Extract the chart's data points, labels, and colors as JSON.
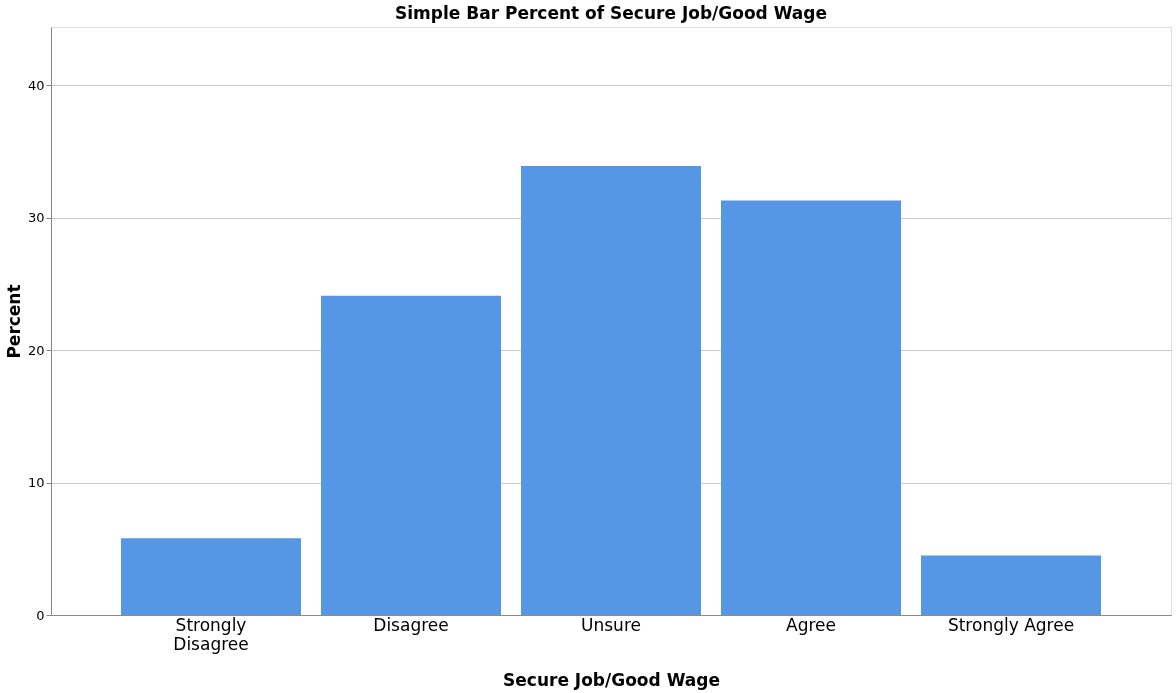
{
  "chart_data": {
    "type": "bar",
    "title": "Simple Bar Percent of Secure Job/Good Wage",
    "xlabel": "Secure Job/Good Wage",
    "ylabel": "Percent",
    "categories": [
      "Strongly Disagree",
      "Disagree",
      "Unsure",
      "Agree",
      "Strongly Agree"
    ],
    "values": [
      5.8,
      24.1,
      33.9,
      31.3,
      4.5
    ],
    "color": "#5597e4",
    "ylim": [
      0,
      44.4
    ],
    "yticks": [
      0,
      10,
      20,
      30,
      40
    ],
    "grid": "y"
  }
}
